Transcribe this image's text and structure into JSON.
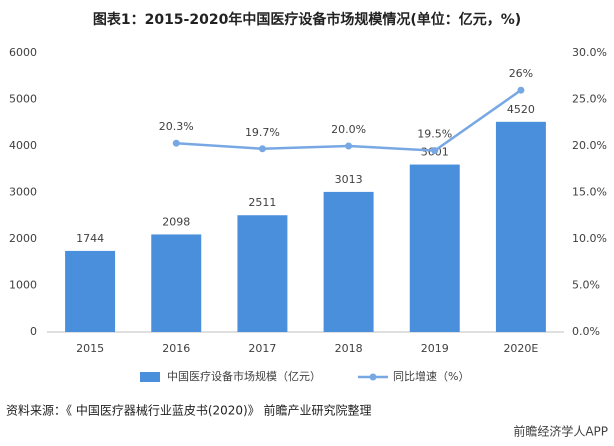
{
  "chart_data": {
    "type": "bar-line",
    "title": "图表1：2015-2020年中国医疗设备市场规模情况(单位：亿元，%)",
    "source": "资料来源：《 中国医疗器械行业蓝皮书(2020)》 前瞻产业研究院整理",
    "watermark": "前瞻经济学人APP",
    "categories": [
      "2015",
      "2016",
      "2017",
      "2018",
      "2019",
      "2020E"
    ],
    "series": [
      {
        "name": "中国医疗设备市场规模（亿元）",
        "color": "#4a8fdc",
        "type": "bar",
        "values": [
          1744,
          2098,
          2511,
          3013,
          3601,
          4520
        ]
      },
      {
        "name": "同比增速（%）",
        "color": "#78a8e4",
        "type": "line",
        "axis": "y2",
        "values": [
          null,
          20.3,
          19.7,
          20.0,
          19.5,
          26
        ],
        "value_labels": [
          null,
          "20.3%",
          "19.7%",
          "20.0%",
          "19.5%",
          "26%"
        ]
      }
    ],
    "ylim": [
      0,
      6000
    ],
    "yticks": [
      0,
      1000,
      2000,
      3000,
      4000,
      5000,
      6000
    ],
    "y2lim": [
      0,
      30
    ],
    "y2ticks": [
      {
        "value": 0,
        "label": "0.0%"
      },
      {
        "value": 5,
        "label": "5.0%"
      },
      {
        "value": 10,
        "label": "10.0%"
      },
      {
        "value": 15,
        "label": "15.0%"
      },
      {
        "value": 20,
        "label": "20.0%"
      },
      {
        "value": 25,
        "label": "25.0%"
      },
      {
        "value": 30,
        "label": "30.0%"
      }
    ],
    "grid": false,
    "legend": "bottom"
  }
}
